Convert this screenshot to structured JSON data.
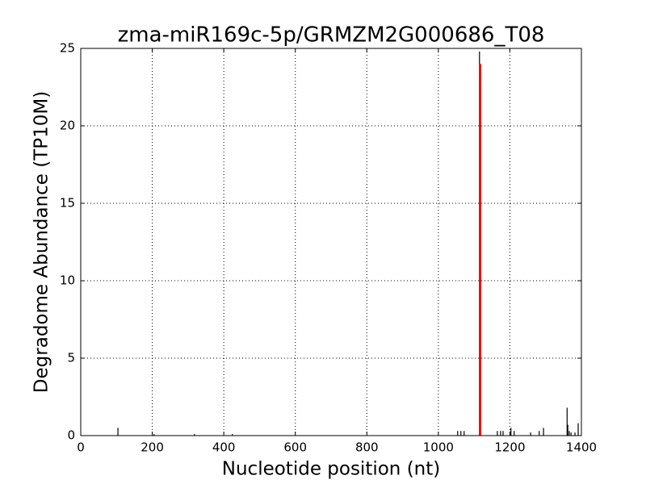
{
  "chart_data": {
    "type": "stem",
    "title": "zma-miR169c-5p/GRMZM2G000686_T08",
    "x_label": "Nucleotide position (nt)",
    "y_label": "Degradome Abundance (TP10M)",
    "xlim": [
      0,
      1400
    ],
    "xticks": [
      0,
      200,
      400,
      600,
      800,
      1000,
      1200,
      1400
    ],
    "ylim": [
      0,
      25
    ],
    "yticks": [
      0,
      5,
      10,
      15,
      20,
      25
    ],
    "grid": true,
    "series": [
      {
        "color": "#000000",
        "x": [
          104,
          205,
          318,
          424,
          1054,
          1063,
          1072,
          1115,
          1165,
          1174,
          1181,
          1203,
          1212,
          1258,
          1282,
          1294,
          1360,
          1362,
          1366,
          1371,
          1382,
          1391
        ],
        "values": [
          0.5,
          0.1,
          0.1,
          0.1,
          0.3,
          0.3,
          0.3,
          24.8,
          0.3,
          0.3,
          0.3,
          0.5,
          0.3,
          0.2,
          0.3,
          0.5,
          1.8,
          0.7,
          0.3,
          0.2,
          0.2,
          0.8
        ]
      },
      {
        "color": "#ff0000",
        "x": [
          1117
        ],
        "values": [
          24
        ]
      }
    ]
  }
}
